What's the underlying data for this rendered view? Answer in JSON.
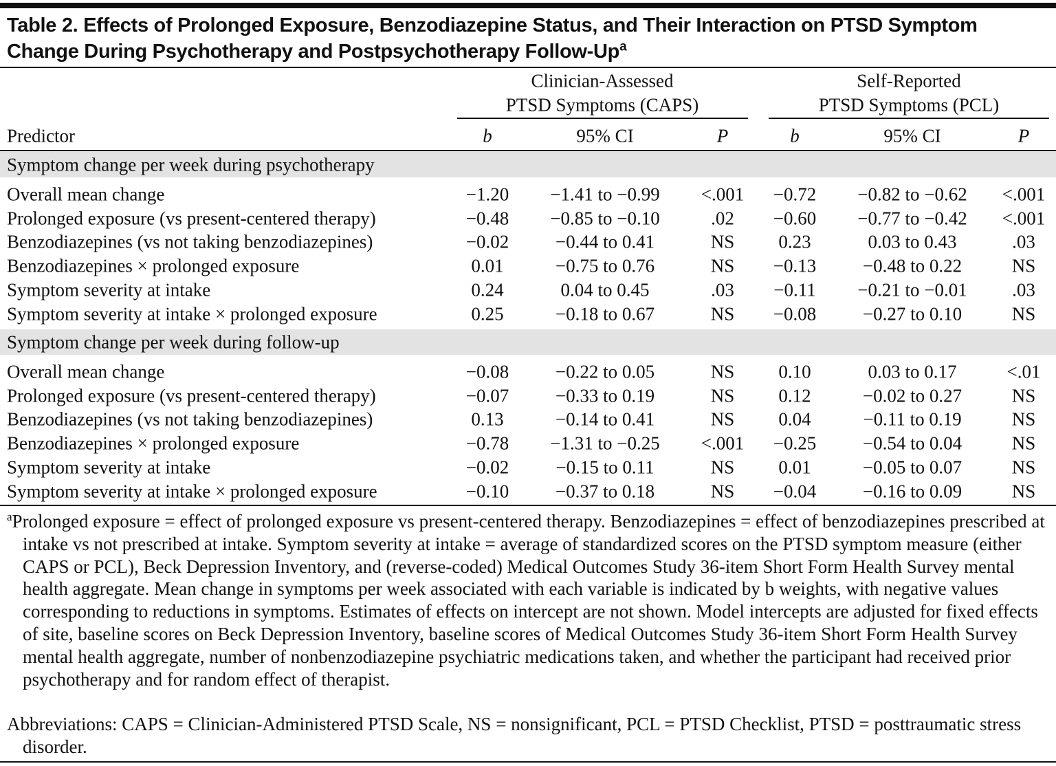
{
  "title": "Table 2. Effects of Prolonged Exposure, Benzodiazepine Status, and Their Interaction on PTSD Symptom Change During Psychotherapy and Postpsychotherapy Follow-Up",
  "title_note": "a",
  "column_groups": [
    [
      "Clinician-Assessed",
      "PTSD Symptoms (CAPS)"
    ],
    [
      "Self-Reported",
      "PTSD Symptoms (PCL)"
    ]
  ],
  "columns": [
    "Predictor",
    "b",
    "95% CI",
    "P",
    "b",
    "95% CI",
    "P"
  ],
  "sections": [
    {
      "title": "Symptom change per week during psychotherapy",
      "rows": [
        [
          "Overall mean change",
          "−1.20",
          "−1.41 to −0.99",
          "<.001",
          "−0.72",
          "−0.82 to −0.62",
          "<.001"
        ],
        [
          "Prolonged exposure (vs present-centered therapy)",
          "−0.48",
          "−0.85 to −0.10",
          ".02",
          "−0.60",
          "−0.77 to −0.42",
          "<.001"
        ],
        [
          "Benzodiazepines (vs not taking benzodiazepines)",
          "−0.02",
          "−0.44 to 0.41",
          "NS",
          "0.23",
          "0.03 to 0.43",
          ".03"
        ],
        [
          "Benzodiazepines × prolonged exposure",
          "0.01",
          "−0.75 to 0.76",
          "NS",
          "−0.13",
          "−0.48 to 0.22",
          "NS"
        ],
        [
          "Symptom severity at intake",
          "0.24",
          "0.04 to 0.45",
          ".03",
          "−0.11",
          "−0.21 to −0.01",
          ".03"
        ],
        [
          "Symptom severity at intake × prolonged exposure",
          "0.25",
          "−0.18 to 0.67",
          "NS",
          "−0.08",
          "−0.27 to 0.10",
          "NS"
        ]
      ]
    },
    {
      "title": "Symptom change per week during follow-up",
      "rows": [
        [
          "Overall mean change",
          "−0.08",
          "−0.22 to 0.05",
          "NS",
          "0.10",
          "0.03 to 0.17",
          "<.01"
        ],
        [
          "Prolonged exposure (vs present-centered therapy)",
          "−0.07",
          "−0.33 to 0.19",
          "NS",
          "0.12",
          "−0.02 to 0.27",
          "NS"
        ],
        [
          "Benzodiazepines (vs not taking benzodiazepines)",
          "0.13",
          "−0.14 to 0.41",
          "NS",
          "0.04",
          "−0.11 to 0.19",
          "NS"
        ],
        [
          "Benzodiazepines × prolonged exposure",
          "−0.78",
          "−1.31 to −0.25",
          "<.001",
          "−0.25",
          "−0.54 to 0.04",
          "NS"
        ],
        [
          "Symptom severity at intake",
          "−0.02",
          "−0.15 to 0.11",
          "NS",
          "0.01",
          "−0.05 to 0.07",
          "NS"
        ],
        [
          "Symptom severity at intake × prolonged exposure",
          "−0.10",
          "−0.37 to 0.18",
          "NS",
          "−0.04",
          "−0.16 to 0.09",
          "NS"
        ]
      ]
    }
  ],
  "footnote": {
    "marker": "a",
    "text": "Prolonged exposure = effect of prolonged exposure vs present-centered therapy. Benzodiazepines = effect of benzodiazepines prescribed at intake vs not prescribed at intake. Symptom severity at intake = average of standardized scores on the PTSD symptom measure (either CAPS or PCL), Beck Depression Inventory, and (reverse-coded) Medical Outcomes Study 36-item Short Form Health Survey mental health aggregate. Mean change in symptoms per week associated with each variable is indicated by b weights, with negative values corresponding to reductions in symptoms. Estimates of effects on intercept are not shown. Model intercepts are adjusted for fixed effects of site, baseline scores on Beck Depression Inventory, baseline scores of Medical Outcomes Study 36-item Short Form Health Survey mental health aggregate, number of nonbenzodiazepine psychiatric medications taken, and whether the participant had received prior psychotherapy and for random effect of therapist."
  },
  "abbreviations": "Abbreviations: CAPS = Clinician-Administered PTSD Scale, NS = nonsignificant, PCL = PTSD Checklist, PTSD = posttraumatic stress disorder."
}
